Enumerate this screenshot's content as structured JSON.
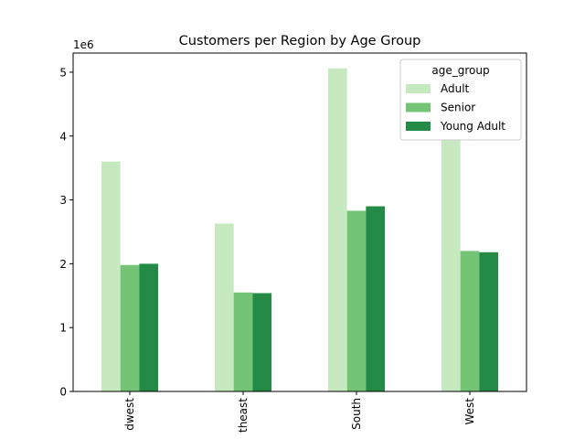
{
  "chart_data": {
    "type": "bar",
    "title": "Customers per Region by Age Group",
    "xlabel": "",
    "ylabel": "",
    "y_scale_label": "1e6",
    "categories": [
      "Midwest",
      "Northeast",
      "South",
      "West"
    ],
    "visible_tick_labels": [
      "dwest",
      "theast",
      "South",
      "West"
    ],
    "series": [
      {
        "name": "Adult",
        "color": "#c7e9c0",
        "values": [
          3600000,
          2630000,
          5060000,
          3950000
        ]
      },
      {
        "name": "Senior",
        "color": "#74c476",
        "values": [
          1980000,
          1550000,
          2830000,
          2200000
        ]
      },
      {
        "name": "Young Adult",
        "color": "#238b45",
        "values": [
          2000000,
          1540000,
          2900000,
          2180000
        ]
      }
    ],
    "ylim": [
      0,
      5300000
    ],
    "yticks": [
      0,
      1,
      2,
      3,
      4,
      5
    ],
    "ytick_multiplier": 1000000,
    "legend": {
      "title": "age_group",
      "placement": "top-right"
    },
    "grid": false
  }
}
